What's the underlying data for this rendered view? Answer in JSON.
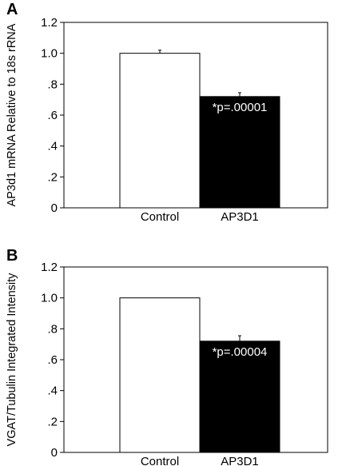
{
  "chart_data": [
    {
      "panel": "A",
      "type": "bar",
      "categories": [
        "Control",
        "AP3D1"
      ],
      "values": [
        1.0,
        0.72
      ],
      "errors": [
        0.02,
        0.025
      ],
      "bar_colors": [
        "#ffffff",
        "#000000"
      ],
      "ylabel": "AP3d1 mRNA Relative to 18s rRNA",
      "ylim": [
        0,
        1.2
      ],
      "yticks": [
        0,
        0.2,
        0.4,
        0.6,
        0.8,
        1.0,
        1.2
      ],
      "ytick_labels": [
        "0",
        ".2",
        ".4",
        ".6",
        ".8",
        "1.0",
        "1.2"
      ],
      "annotation": "*p=.00001",
      "grid": false
    },
    {
      "panel": "B",
      "type": "bar",
      "categories": [
        "Control",
        "AP3D1"
      ],
      "values": [
        1.0,
        0.72
      ],
      "errors": [
        0.0,
        0.035
      ],
      "bar_colors": [
        "#ffffff",
        "#000000"
      ],
      "ylabel": "VGAT/Tubulin Integrated Intensity",
      "ylim": [
        0,
        1.2
      ],
      "yticks": [
        0,
        0.2,
        0.4,
        0.6,
        0.8,
        1.0,
        1.2
      ],
      "ytick_labels": [
        "0",
        ".2",
        ".4",
        ".6",
        ".8",
        "1.0",
        "1.2"
      ],
      "annotation": "*p=.00004",
      "grid": false
    }
  ]
}
